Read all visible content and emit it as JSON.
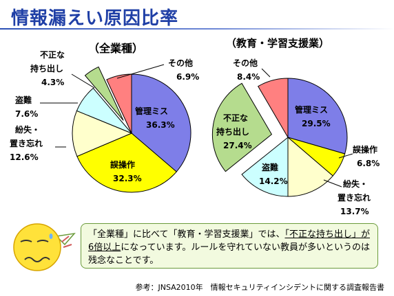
{
  "title": "情報漏えい原因比率",
  "chart_data": [
    {
      "type": "pie",
      "title": "（全業種）",
      "slices": [
        {
          "name": "管理ミス",
          "value": 36.3,
          "color": "#7e7ee8",
          "exploded": false
        },
        {
          "name": "誤操作",
          "value": 32.3,
          "color": "#ffff00",
          "exploded": false
        },
        {
          "name": "紛失・置き忘れ",
          "value": 12.6,
          "color": "#ffffcc",
          "exploded": false
        },
        {
          "name": "盗難",
          "value": 7.6,
          "color": "#ccffff",
          "exploded": false
        },
        {
          "name": "不正な持ち出し",
          "value": 4.3,
          "color": "#b5dc8e",
          "exploded": true
        },
        {
          "name": "その他",
          "value": 6.9,
          "color": "#ff8080",
          "exploded": false
        }
      ]
    },
    {
      "type": "pie",
      "title": "（教育・学習支援業）",
      "slices": [
        {
          "name": "管理ミス",
          "value": 29.5,
          "color": "#7e7ee8",
          "exploded": false
        },
        {
          "name": "誤操作",
          "value": 6.8,
          "color": "#ffff00",
          "exploded": false
        },
        {
          "name": "紛失・置き忘れ",
          "value": 13.7,
          "color": "#ffffcc",
          "exploded": false
        },
        {
          "name": "盗難",
          "value": 14.2,
          "color": "#ccffff",
          "exploded": false
        },
        {
          "name": "不正な持ち出し",
          "value": 27.4,
          "color": "#b5dc8e",
          "exploded": true
        },
        {
          "name": "その他",
          "value": 8.4,
          "color": "#ff8080",
          "exploded": false
        }
      ]
    }
  ],
  "labels": {
    "left": {
      "kanri_name": "管理ミス",
      "kanri_val": "36.3%",
      "gosousa_name": "誤操作",
      "gosousa_val": "32.3%",
      "funshitsu_l1": "紛失・",
      "funshitsu_l2": "置き忘れ",
      "funshitsu_val": "12.6%",
      "tounan_name": "盗難",
      "tounan_val": "7.6%",
      "fusei_l1": "不正な",
      "fusei_l2": "持ち出し",
      "fusei_val": "4.3%",
      "sonota_name": "その他",
      "sonota_val": "6.9%"
    },
    "right": {
      "kanri_name": "管理ミス",
      "kanri_val": "29.5%",
      "gosousa_name": "誤操作",
      "gosousa_val": "6.8%",
      "funshitsu_l1": "紛失・",
      "funshitsu_l2": "置き忘れ",
      "funshitsu_val": "13.7%",
      "tounan_name": "盗難",
      "tounan_val": "14.2%",
      "fusei_l1": "不正な",
      "fusei_l2": "持ち出し",
      "fusei_val": "27.4%",
      "sonota_name": "その他",
      "sonota_val": "8.4%"
    }
  },
  "callout": {
    "part1": "「全業種」に比べて「教育・学習支援業」では、",
    "part2": "「不正な持ち出し」が6倍以上",
    "part3": "になっています。ルールを守れていない教員が多いというのは残念なことです。"
  },
  "source": "参考：JNSA2010年　情報セキュリティインシデントに関する調査報告書"
}
